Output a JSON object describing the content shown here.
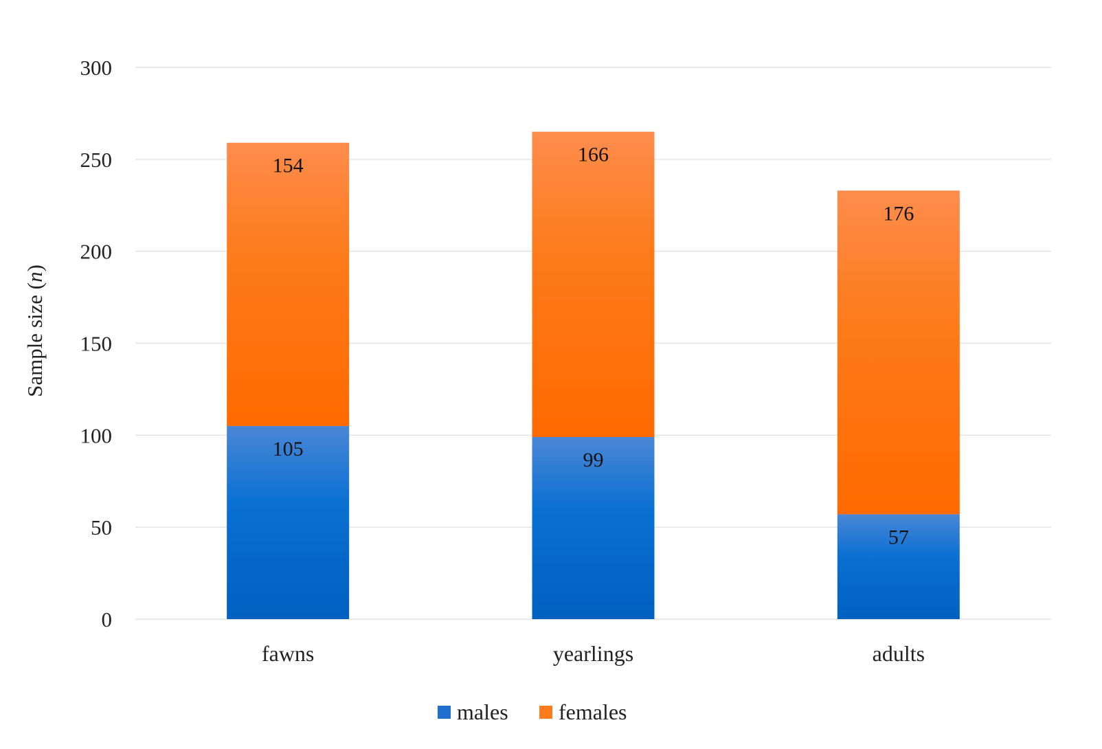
{
  "chart_data": {
    "type": "bar",
    "stacked": true,
    "categories": [
      "fawns",
      "yearlings",
      "adults"
    ],
    "series": [
      {
        "name": "males",
        "values": [
          105,
          99,
          57
        ],
        "color": "#1f6fd1"
      },
      {
        "name": "females",
        "values": [
          154,
          166,
          176
        ],
        "color": "#ff7a1a"
      }
    ],
    "ylabel": {
      "text": "Sample size (",
      "italic": "n",
      "suffix": ")"
    },
    "xlabel": "",
    "title": "",
    "ylim": [
      0,
      300
    ],
    "yticks": [
      "0",
      "50",
      "100",
      "150",
      "200",
      "250",
      "300"
    ],
    "grid": true,
    "legend_position": "bottom-center"
  }
}
